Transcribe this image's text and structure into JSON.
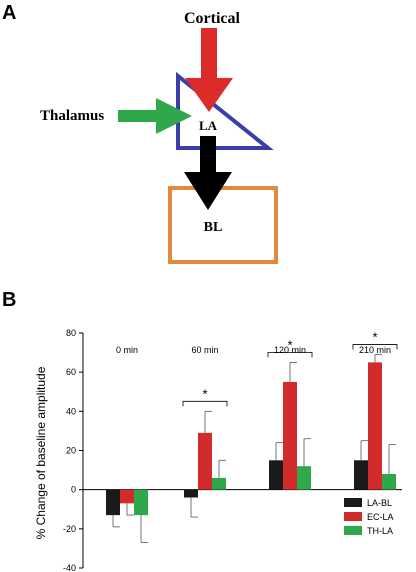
{
  "panel_a": {
    "letter": "A",
    "inputs": {
      "cortical": "Cortical",
      "thalamus": "Thalamus"
    },
    "nodes": {
      "la": "LA",
      "bl": "BL"
    },
    "colors": {
      "cortical_arrow": "#dd2a2a",
      "thalamus_arrow": "#2ea84a",
      "la_arrow": "#000000",
      "la_triangle": "#3a3fa8",
      "bl_box": "#e08a3a"
    }
  },
  "panel_b": {
    "letter": "B"
  },
  "chart_data": {
    "type": "bar",
    "categories": [
      "0 min",
      "60 min",
      "120 min",
      "210 min"
    ],
    "ylabel": "% Change of baseline amplitude",
    "ylim": [
      -40,
      80
    ],
    "yticks": [
      "80",
      "60",
      "40",
      "20",
      "0",
      "-20",
      "-40"
    ],
    "series": [
      {
        "name": "LA-BL",
        "color": "#1a1a1a",
        "values": [
          -13,
          -4,
          15,
          15
        ],
        "errors": [
          6,
          10,
          9,
          10
        ]
      },
      {
        "name": "EC-LA",
        "color": "#d22b2b",
        "values": [
          -7,
          29,
          55,
          65
        ],
        "errors": [
          6,
          11,
          10,
          4
        ]
      },
      {
        "name": "TH-LA",
        "color": "#2ea84a",
        "values": [
          -13,
          6,
          12,
          8
        ],
        "errors": [
          14,
          9,
          14,
          15
        ]
      }
    ],
    "annotations": {
      "significance": [
        {
          "category": "60 min",
          "mark": "*"
        },
        {
          "category": "120 min",
          "mark": "*"
        },
        {
          "category": "210 min",
          "mark": "*"
        }
      ]
    }
  }
}
